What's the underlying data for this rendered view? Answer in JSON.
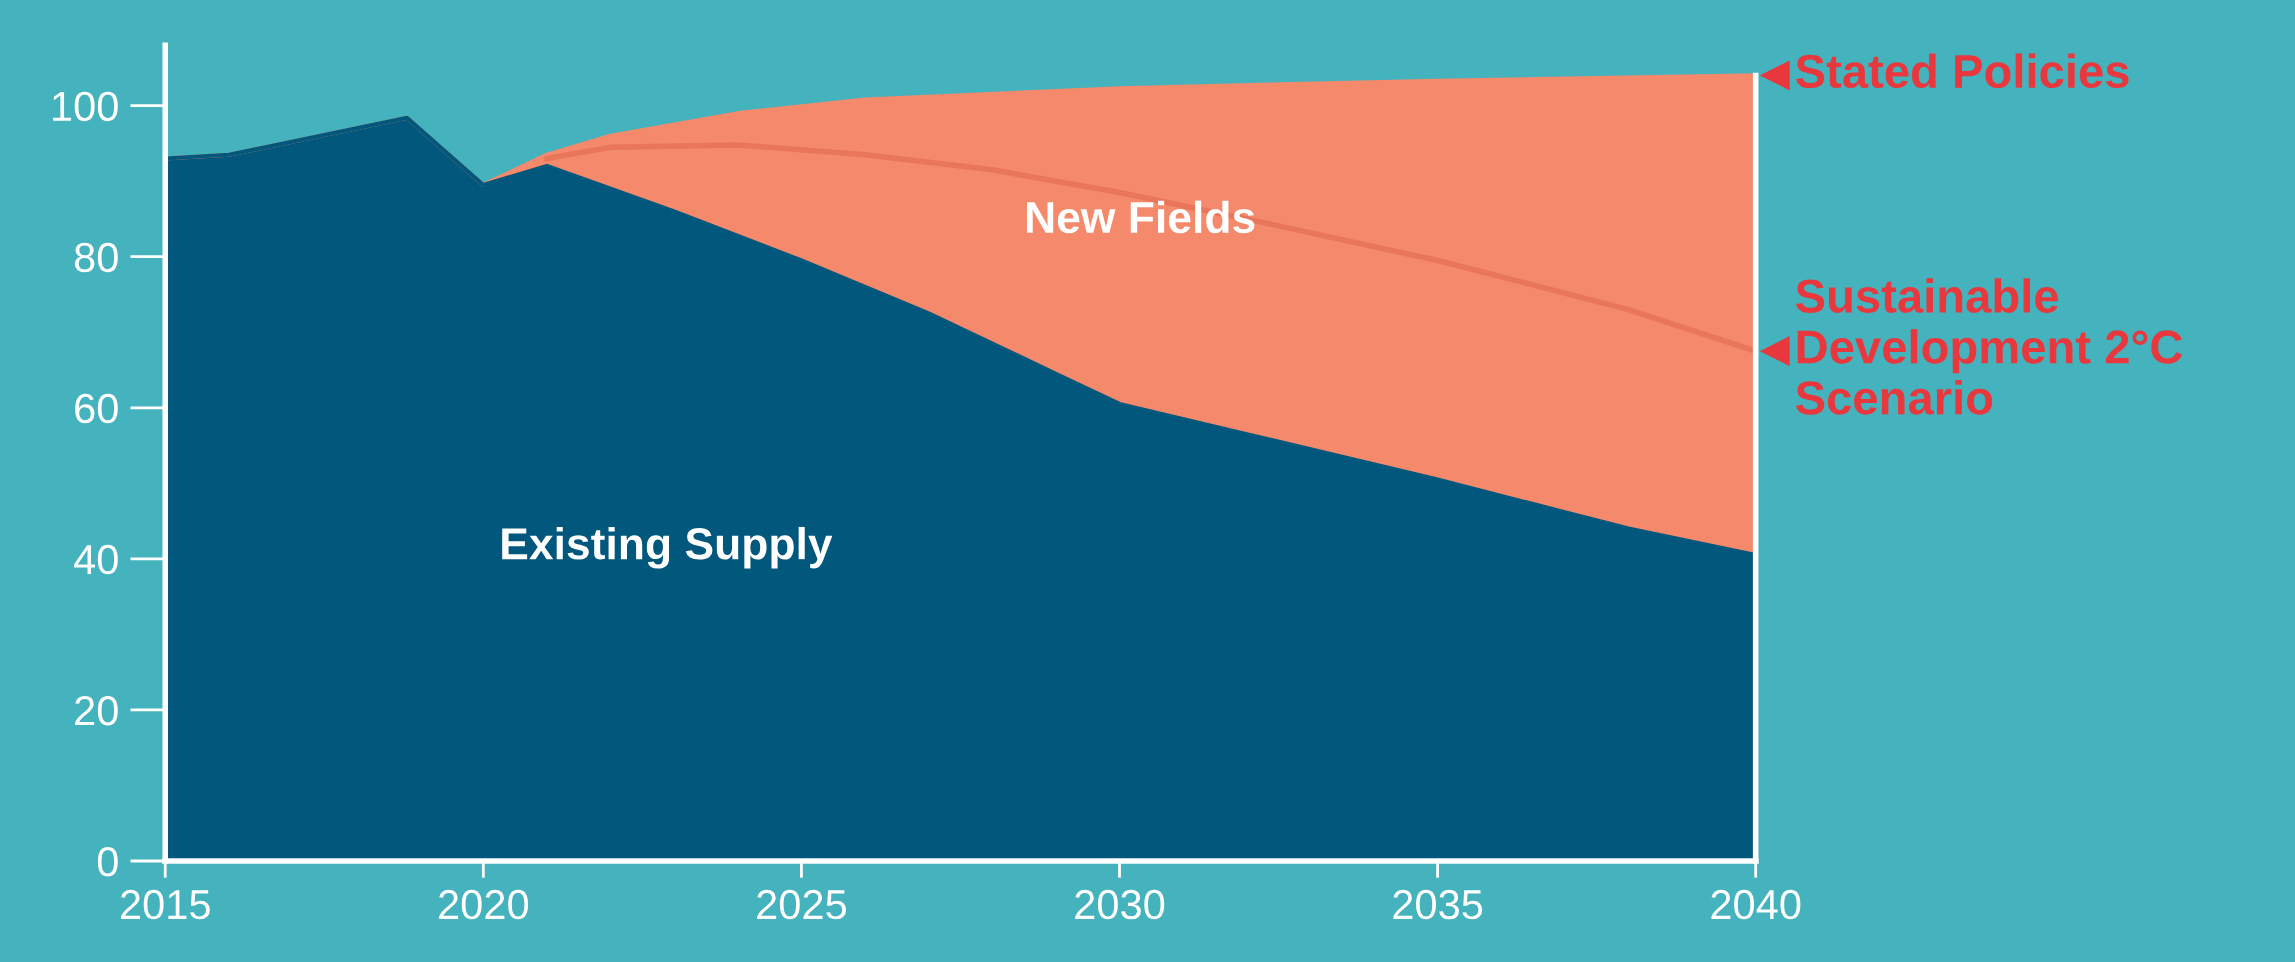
{
  "chart_data": {
    "type": "area",
    "xlim": [
      2015,
      2040
    ],
    "ylim": [
      0,
      108
    ],
    "xticks": [
      2015,
      2020,
      2025,
      2030,
      2035,
      2040
    ],
    "yticks": [
      0,
      20,
      40,
      60,
      80,
      100
    ],
    "grid": false,
    "legend": false,
    "marker": "none",
    "annotations": [
      "New Fields",
      "Existing Supply"
    ],
    "series": [
      {
        "name": "Stated Policies",
        "color": "#f4896b",
        "x": [
          2015,
          2016,
          2018.8,
          2020,
          2021,
          2022,
          2024,
          2026,
          2030,
          2035,
          2040
        ],
        "values": [
          93.0,
          93.5,
          98.4,
          89.5,
          93.5,
          96,
          99,
          100.8,
          102.3,
          103.3,
          104
        ]
      },
      {
        "color": "#02577c",
        "x": [
          2015,
          2016,
          2018.8,
          2020,
          2021,
          2023,
          2025,
          2027,
          2029,
          2030,
          2032,
          2035,
          2038,
          2040
        ],
        "values": [
          93.0,
          93.5,
          98.4,
          89.5,
          92,
          86,
          79.5,
          72.5,
          64.5,
          60.5,
          56.5,
          50.5,
          44,
          40.5
        ]
      },
      {
        "name": "Sustainable Development 2°C Scenario",
        "type": "line",
        "color": "#e9765b",
        "x": [
          2021,
          2022,
          2024,
          2026,
          2028,
          2030,
          2032,
          2035,
          2038,
          2040
        ],
        "values": [
          93,
          94.5,
          94.8,
          93.5,
          91.5,
          88.5,
          85,
          79.5,
          73,
          67.5
        ]
      }
    ]
  }
}
